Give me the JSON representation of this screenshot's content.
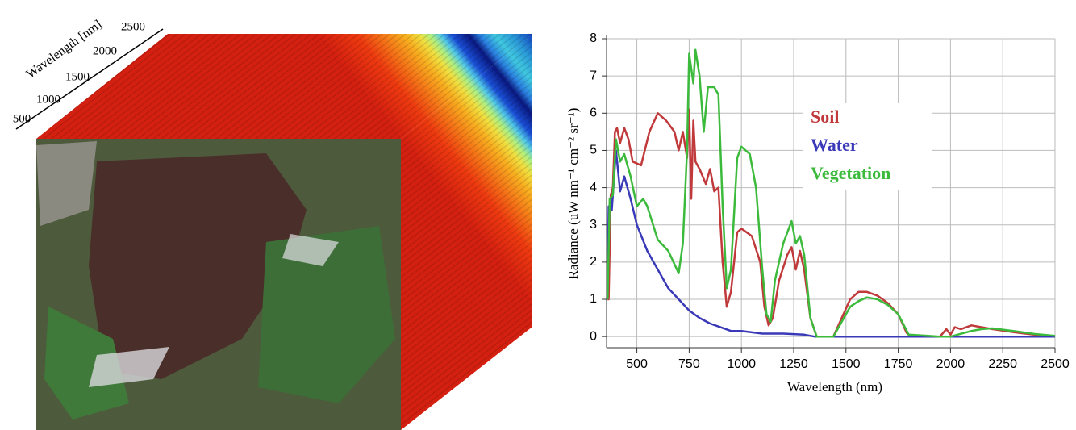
{
  "cube": {
    "axis_label": "Wavelength [nm]",
    "ticks": [
      "500",
      "1000",
      "1500",
      "2000",
      "2500"
    ]
  },
  "chart_data": {
    "type": "line",
    "x_label": "Wavelength (nm)",
    "y_label": "Radiance (uW nm⁻¹ cm⁻² sr⁻¹)",
    "xlim": [
      355,
      2500
    ],
    "ylim": [
      -0.3,
      8
    ],
    "xticks": [
      500,
      750,
      1000,
      1250,
      1500,
      1750,
      2000,
      2250,
      2500
    ],
    "yticks": [
      0,
      1,
      2,
      3,
      4,
      5,
      6,
      7,
      8
    ],
    "grid": true,
    "series": [
      {
        "name": "Soil",
        "color": "#c0393b",
        "x": [
          360,
          365,
          375,
          385,
          395,
          405,
          420,
          440,
          460,
          480,
          520,
          560,
          600,
          640,
          680,
          700,
          720,
          740,
          750,
          760,
          770,
          780,
          800,
          830,
          850,
          870,
          890,
          910,
          930,
          950,
          980,
          1000,
          1050,
          1090,
          1110,
          1130,
          1150,
          1180,
          1220,
          1240,
          1260,
          1280,
          1300,
          1330,
          1360,
          1400,
          1440,
          1480,
          1520,
          1560,
          1600,
          1650,
          1700,
          1750,
          1790,
          1810,
          1950,
          1980,
          2000,
          2020,
          2050,
          2100,
          2150,
          2200,
          2300,
          2400,
          2500
        ],
        "values": [
          1,
          1,
          3.8,
          4,
          5.5,
          5.6,
          5.2,
          5.6,
          5.3,
          4.7,
          4.6,
          5.5,
          6.0,
          5.8,
          5.5,
          5.0,
          5.5,
          4.8,
          6.1,
          3.7,
          5.8,
          4.7,
          4.5,
          4.1,
          4.5,
          3.9,
          4.0,
          2.0,
          0.8,
          1.2,
          2.8,
          2.9,
          2.7,
          2.0,
          0.8,
          0.3,
          0.5,
          1.5,
          2.2,
          2.4,
          1.8,
          2.3,
          1.8,
          0.5,
          0,
          0,
          0,
          0.5,
          1.0,
          1.2,
          1.2,
          1.1,
          0.9,
          0.6,
          0.1,
          0,
          0,
          0.2,
          0.05,
          0.25,
          0.2,
          0.3,
          0.25,
          0.2,
          0.12,
          0.05,
          0
        ]
      },
      {
        "name": "Water",
        "color": "#3a3ab8",
        "x": [
          360,
          365,
          380,
          400,
          420,
          440,
          470,
          500,
          550,
          600,
          650,
          700,
          750,
          800,
          850,
          900,
          950,
          1000,
          1100,
          1200,
          1300,
          1350,
          2500
        ],
        "values": [
          1.2,
          3.5,
          3.4,
          5.0,
          3.9,
          4.3,
          3.7,
          3.0,
          2.3,
          1.8,
          1.3,
          1.0,
          0.7,
          0.5,
          0.35,
          0.25,
          0.15,
          0.15,
          0.08,
          0.08,
          0.05,
          0,
          0
        ]
      },
      {
        "name": "Vegetation",
        "color": "#3cba3c",
        "x": [
          360,
          370,
          385,
          400,
          420,
          440,
          470,
          500,
          530,
          550,
          600,
          650,
          700,
          720,
          740,
          750,
          760,
          770,
          780,
          800,
          820,
          840,
          870,
          890,
          910,
          930,
          950,
          980,
          1000,
          1040,
          1070,
          1100,
          1120,
          1140,
          1160,
          1200,
          1240,
          1260,
          1280,
          1300,
          1330,
          1360,
          1440,
          1480,
          1520,
          1560,
          1600,
          1650,
          1700,
          1750,
          1800,
          1950,
          2000,
          2100,
          2150,
          2200,
          2300,
          2400,
          2500
        ],
        "values": [
          1,
          3.7,
          3.8,
          5.3,
          4.7,
          4.9,
          4.3,
          3.5,
          3.7,
          3.5,
          2.6,
          2.3,
          1.7,
          2.5,
          5.0,
          7.6,
          7.2,
          6.8,
          7.7,
          7.0,
          5.5,
          6.7,
          6.7,
          6.5,
          3.5,
          1.3,
          1.8,
          4.8,
          5.1,
          4.9,
          4.0,
          1.8,
          0.6,
          0.4,
          1.5,
          2.5,
          3.1,
          2.5,
          2.7,
          2.2,
          0.5,
          0,
          0,
          0.4,
          0.8,
          0.95,
          1.05,
          1.0,
          0.85,
          0.6,
          0.05,
          0,
          0,
          0.15,
          0.2,
          0.22,
          0.15,
          0.07,
          0.02
        ]
      }
    ]
  }
}
